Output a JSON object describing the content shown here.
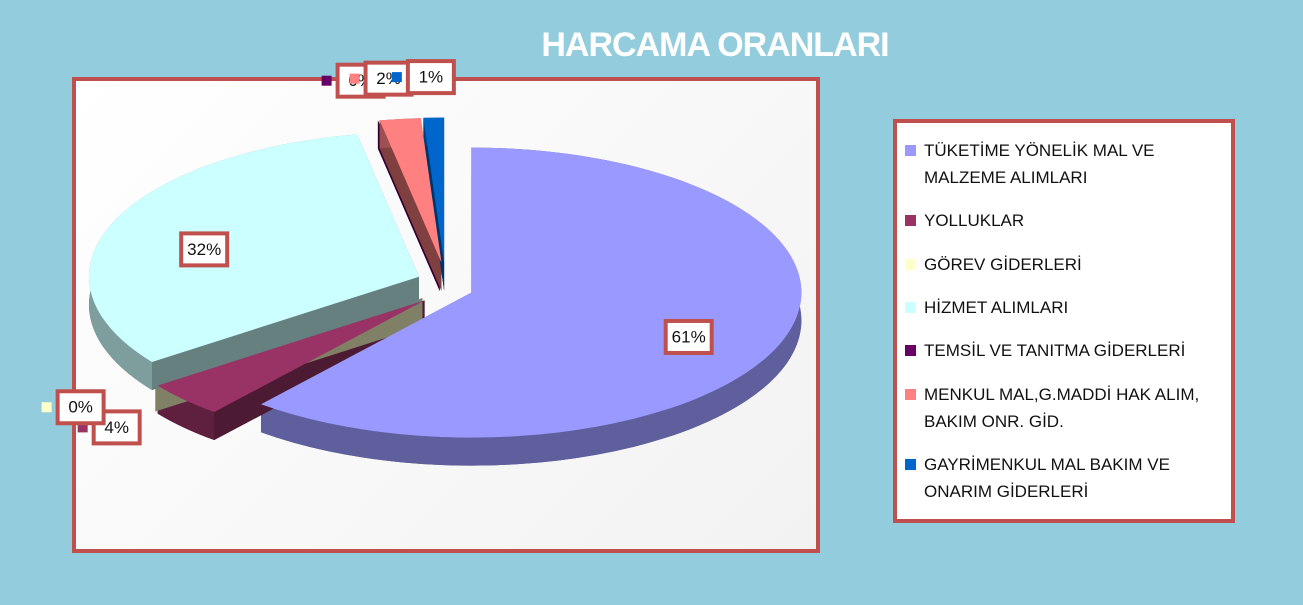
{
  "chart_data": {
    "type": "pie3d",
    "title": "HARCAMA ORANLARI",
    "categories": [
      "TÜKETİME YÖNELİK MAL VE MALZEME ALIMLARI",
      "YOLLUKLAR",
      "GÖREV GİDERLERİ",
      "HİZMET ALIMLARI",
      "TEMSİL VE TANITMA GİDERLERİ",
      "MENKUL MAL,G.MADDİ HAK ALIM, BAKIM ONR. GİD.",
      "GAYRİMENKUL MAL BAKIM VE ONARIM GİDERLERİ"
    ],
    "values": [
      61,
      4,
      0,
      32,
      0,
      2,
      1
    ],
    "value_labels": [
      "61%",
      "4%",
      "0%",
      "32%",
      "0%",
      "2%",
      "1%"
    ],
    "colors": [
      "#9999ff",
      "#993366",
      "#ffffcc",
      "#ccffff",
      "#660066",
      "#ff8080",
      "#0066cc"
    ],
    "legend": "right"
  }
}
